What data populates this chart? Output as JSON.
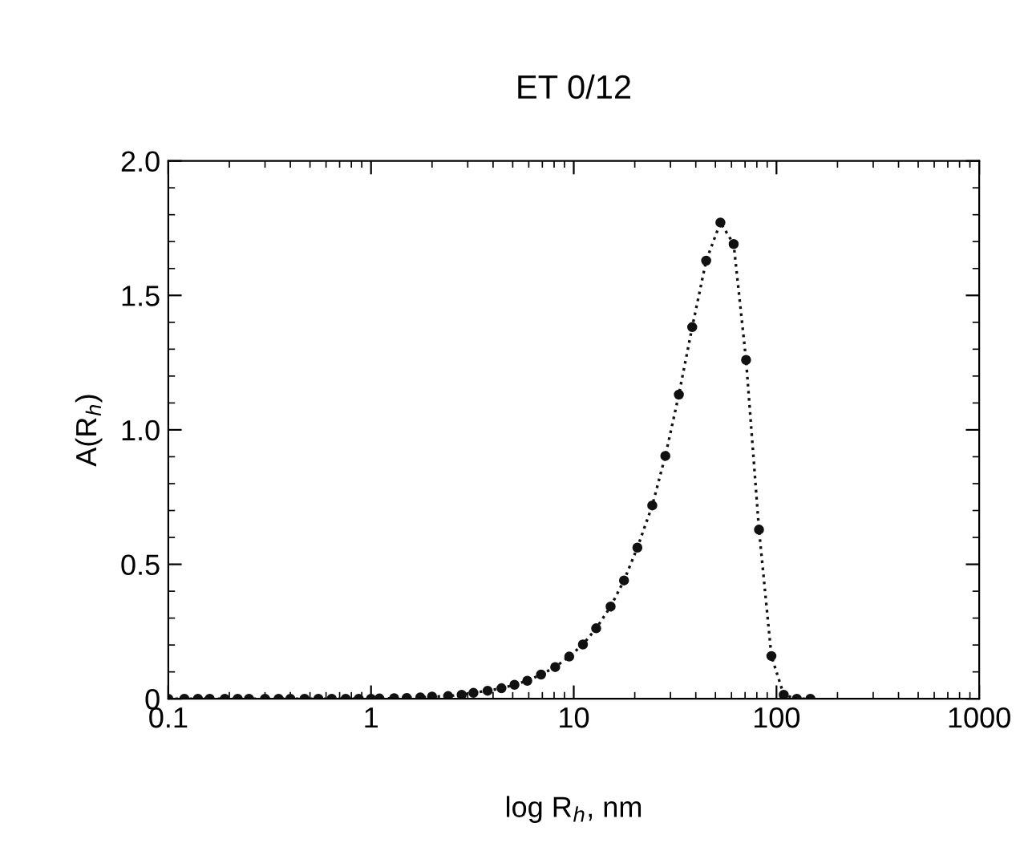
{
  "chart_data": {
    "type": "line",
    "title": "ET 0/12",
    "xlabel": "log R$_{h}$, nm",
    "ylabel": "A(R$_{h}$)",
    "x": [
      0.1,
      0.12,
      0.14,
      0.16,
      0.19,
      0.22,
      0.25,
      0.3,
      0.35,
      0.4,
      0.47,
      0.55,
      0.64,
      0.75,
      0.87,
      1.0,
      1.1,
      1.3,
      1.5,
      1.75,
      2.0,
      2.4,
      2.8,
      3.2,
      3.76,
      4.4,
      5.1,
      5.9,
      6.9,
      8.1,
      9.5,
      11.1,
      12.9,
      15.2,
      17.7,
      20.6,
      24.4,
      28.3,
      33.0,
      38.4,
      45.0,
      52.9,
      61.5,
      70.8,
      82.0,
      94.4,
      108.6,
      126,
      147
    ],
    "series": [
      {
        "color": "#111111",
        "values": [
          0,
          0,
          0,
          0,
          0,
          0,
          0,
          0,
          0,
          0,
          0,
          0,
          0,
          0,
          0,
          0,
          0.001,
          0.002,
          0.003,
          0.005,
          0.008,
          0.01,
          0.015,
          0.022,
          0.03,
          0.039,
          0.052,
          0.067,
          0.09,
          0.118,
          0.157,
          0.202,
          0.262,
          0.343,
          0.44,
          0.562,
          0.719,
          0.903,
          1.131,
          1.382,
          1.629,
          1.771,
          1.691,
          1.26,
          0.629,
          0.159,
          0.015,
          0,
          0
        ]
      }
    ],
    "log": "x",
    "xlim": [
      0.1,
      1000
    ],
    "xticks": [
      0.1,
      1,
      10,
      100,
      1000
    ],
    "ylim": [
      0,
      2.0
    ],
    "yticks": [
      0,
      {
        "value": 0.5,
        "label": "0.5"
      },
      {
        "value": 1.0,
        "label": "1.0"
      },
      {
        "value": 1.5,
        "label": "1.5"
      },
      {
        "value": 2.0,
        "label": "2.0"
      }
    ],
    "marker": "circle",
    "line_style": "dotted",
    "grid": false
  }
}
